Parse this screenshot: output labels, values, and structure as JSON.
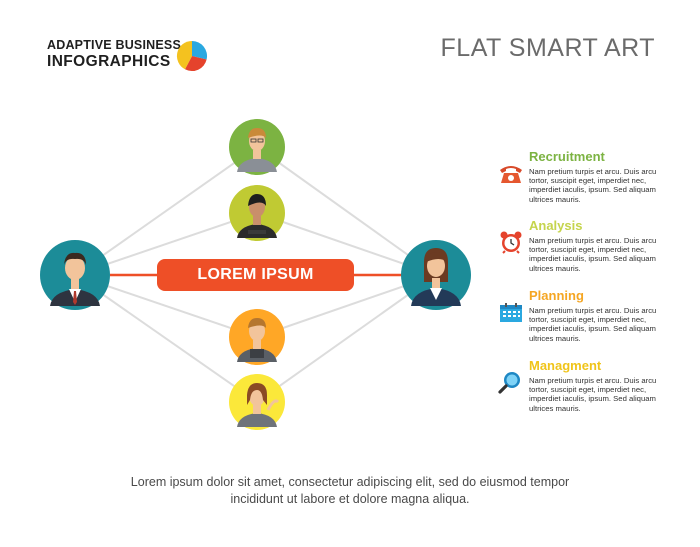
{
  "header": {
    "brand_line1": "ADAPTIVE BUSINESS",
    "brand_line2": "INFOGRAPHICS",
    "title": "FLAT SMART ART"
  },
  "colors": {
    "accent_orange": "#ee4f27",
    "connector_gray": "#dcdcdc",
    "circle_teal": "#1c8c98",
    "circle_green": "#7cb342",
    "circle_lime": "#c0ca33",
    "circle_orange": "#ffa726",
    "circle_yellow": "#fbe83a",
    "logo_blue": "#2aa8e0",
    "logo_red": "#e5432c",
    "logo_yellow": "#f4c21f"
  },
  "diagram": {
    "center_label": "LOREM IPSUM"
  },
  "legend": [
    {
      "title": "Recruitment",
      "color": "#7cb342",
      "icon": "telephone-icon",
      "text": "Nam pretium turpis et arcu. Duis arcu tortor, suscipit eget, imperdiet nec, imperdiet iaculis, ipsum. Sed aliquam ultrices mauris."
    },
    {
      "title": "Analysis",
      "color": "#c5d44d",
      "icon": "alarm-clock-icon",
      "text": "Nam pretium turpis et arcu. Duis arcu tortor, suscipit eget, imperdiet nec, imperdiet iaculis, ipsum. Sed aliquam ultrices mauris."
    },
    {
      "title": "Planning",
      "color": "#f5a623",
      "icon": "calendar-icon",
      "text": "Nam pretium turpis et arcu. Duis arcu tortor, suscipit eget, imperdiet nec, imperdiet iaculis, ipsum. Sed aliquam ultrices mauris."
    },
    {
      "title": "Managment",
      "color": "#f0c419",
      "icon": "magnifier-icon",
      "text": "Nam pretium turpis et arcu. Duis arcu tortor, suscipit eget, imperdiet nec, imperdiet iaculis, ipsum. Sed aliquam ultrices mauris."
    }
  ],
  "footer": {
    "line1": "Lorem ipsum dolor sit amet, consectetur adipiscing elit, sed do eiusmod tempor",
    "line2": "incididunt ut labore et dolore magna aliqua."
  }
}
